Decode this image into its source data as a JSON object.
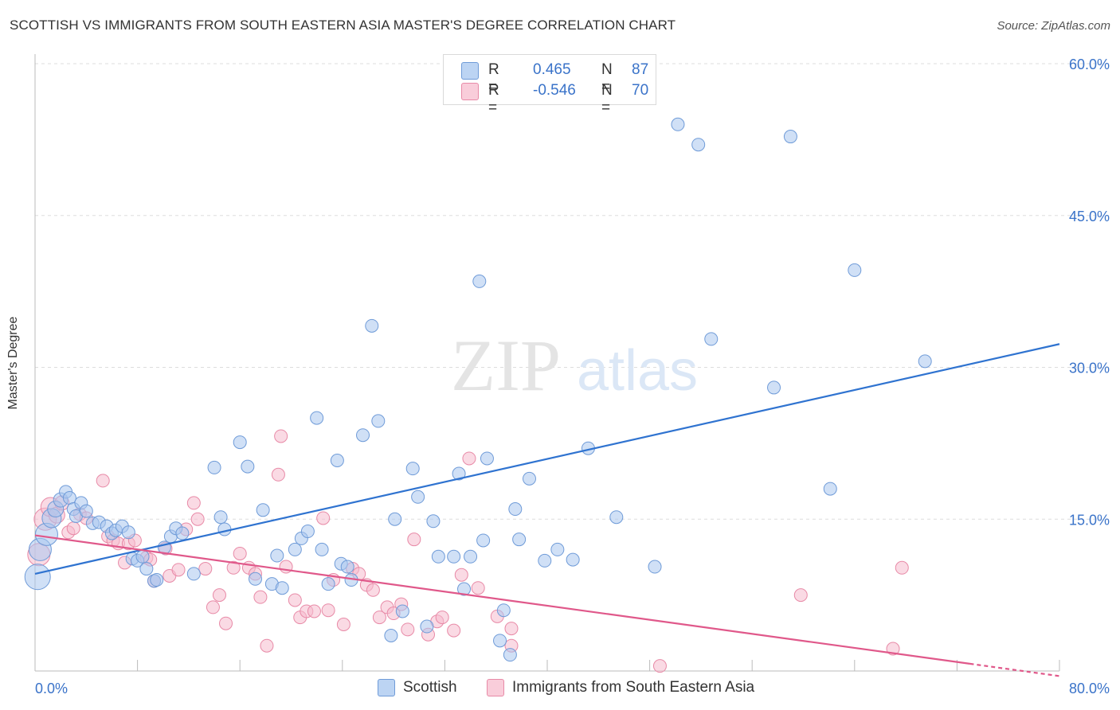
{
  "header": {
    "title": "SCOTTISH VS IMMIGRANTS FROM SOUTH EASTERN ASIA MASTER'S DEGREE CORRELATION CHART",
    "source": "Source: ZipAtlas.com"
  },
  "watermark": {
    "zip": "ZIP",
    "atlas": "atlas"
  },
  "legend": {
    "scottish": {
      "r_label": "R =",
      "r_value": "0.465",
      "n_label": "N =",
      "n_value": "87"
    },
    "sea": {
      "r_label": "R =",
      "r_value": "-0.546",
      "n_label": "N =",
      "n_value": "70"
    }
  },
  "bottom_legend": {
    "scottish": "Scottish",
    "sea": "Immigrants from South Eastern Asia"
  },
  "colors": {
    "blue_fill": "#a9c7ef",
    "blue_stroke": "#6f9bd8",
    "blue_line": "#2f73d0",
    "pink_fill": "#f6bccd",
    "pink_stroke": "#e88aa7",
    "pink_line": "#e0588a",
    "axis_text": "#3a73c9",
    "grid": "#dddddd"
  },
  "chart_data": {
    "type": "scatter",
    "title": "SCOTTISH VS IMMIGRANTS FROM SOUTH EASTERN ASIA MASTER'S DEGREE CORRELATION CHART",
    "ylabel": "Master's Degree",
    "xlim": [
      0,
      80
    ],
    "ylim": [
      0,
      60
    ],
    "x_tick_labels": [
      "0.0%",
      "80.0%"
    ],
    "y_ticks": [
      15,
      30,
      45,
      60
    ],
    "y_tick_labels": [
      "15.0%",
      "30.0%",
      "45.0%",
      "60.0%"
    ],
    "legend_position": "top-center",
    "series": [
      {
        "name": "Scottish",
        "color": "#a9c7ef",
        "trend": {
          "x": [
            0,
            80
          ],
          "y": [
            9.6,
            32.3
          ]
        },
        "points": [
          [
            0.2,
            9.3,
            16
          ],
          [
            0.4,
            12.0,
            14
          ],
          [
            0.9,
            13.5,
            14
          ],
          [
            1.3,
            15.1,
            12
          ],
          [
            1.6,
            16.0,
            10
          ],
          [
            2.0,
            16.9,
            9
          ],
          [
            2.4,
            17.7,
            8
          ],
          [
            2.7,
            17.1,
            8
          ],
          [
            3.0,
            16.0,
            8
          ],
          [
            3.2,
            15.3,
            8
          ],
          [
            3.6,
            16.6,
            8
          ],
          [
            4.0,
            15.8,
            8
          ],
          [
            4.5,
            14.6,
            8
          ],
          [
            5.0,
            14.7,
            8
          ],
          [
            5.6,
            14.3,
            8
          ],
          [
            6.0,
            13.6,
            8
          ],
          [
            6.3,
            13.9,
            8
          ],
          [
            6.8,
            14.3,
            8
          ],
          [
            7.3,
            13.7,
            8
          ],
          [
            7.6,
            11.1,
            8
          ],
          [
            8.0,
            10.9,
            8
          ],
          [
            8.4,
            11.3,
            8
          ],
          [
            8.7,
            10.1,
            8
          ],
          [
            9.3,
            8.9,
            8
          ],
          [
            9.5,
            9.0,
            8
          ],
          [
            10.1,
            12.2,
            8
          ],
          [
            10.6,
            13.3,
            8
          ],
          [
            11.0,
            14.1,
            8
          ],
          [
            11.5,
            13.6,
            8
          ],
          [
            12.4,
            9.6,
            8
          ],
          [
            14.0,
            20.1,
            8
          ],
          [
            14.5,
            15.2,
            8
          ],
          [
            14.8,
            14.0,
            8
          ],
          [
            16.0,
            22.6,
            8
          ],
          [
            16.6,
            20.2,
            8
          ],
          [
            17.2,
            9.1,
            8
          ],
          [
            17.8,
            15.9,
            8
          ],
          [
            18.5,
            8.6,
            8
          ],
          [
            18.9,
            11.4,
            8
          ],
          [
            19.3,
            8.2,
            8
          ],
          [
            20.3,
            12.0,
            8
          ],
          [
            20.8,
            13.1,
            8
          ],
          [
            21.3,
            13.8,
            8
          ],
          [
            22.0,
            25.0,
            8
          ],
          [
            22.4,
            12.0,
            8
          ],
          [
            22.9,
            8.6,
            8
          ],
          [
            23.6,
            20.8,
            8
          ],
          [
            23.9,
            10.6,
            8
          ],
          [
            24.4,
            10.3,
            8
          ],
          [
            24.7,
            9.0,
            8
          ],
          [
            25.6,
            23.3,
            8
          ],
          [
            26.3,
            34.1,
            8
          ],
          [
            26.8,
            24.7,
            8
          ],
          [
            27.8,
            3.5,
            8
          ],
          [
            28.1,
            15.0,
            8
          ],
          [
            28.7,
            5.9,
            8
          ],
          [
            29.5,
            20.0,
            8
          ],
          [
            29.9,
            17.2,
            8
          ],
          [
            30.6,
            4.4,
            8
          ],
          [
            31.1,
            14.8,
            8
          ],
          [
            31.5,
            11.3,
            8
          ],
          [
            32.7,
            11.3,
            8
          ],
          [
            33.1,
            19.5,
            8
          ],
          [
            33.5,
            8.1,
            8
          ],
          [
            34.0,
            11.3,
            8
          ],
          [
            34.7,
            38.5,
            8
          ],
          [
            35.3,
            21.0,
            8
          ],
          [
            36.3,
            3.0,
            8
          ],
          [
            36.6,
            6.0,
            8
          ],
          [
            37.5,
            16.0,
            8
          ],
          [
            37.8,
            13.0,
            8
          ],
          [
            38.6,
            19.0,
            8
          ],
          [
            37.1,
            1.6,
            8
          ],
          [
            39.8,
            10.9,
            8
          ],
          [
            40.8,
            12.0,
            8
          ],
          [
            35.0,
            12.9,
            8
          ],
          [
            42.0,
            11.0,
            8
          ],
          [
            43.2,
            22.0,
            8
          ],
          [
            45.4,
            15.2,
            8
          ],
          [
            48.4,
            10.3,
            8
          ],
          [
            50.2,
            54.0,
            8
          ],
          [
            51.8,
            52.0,
            8
          ],
          [
            52.8,
            32.8,
            8
          ],
          [
            57.7,
            28.0,
            8
          ],
          [
            59.0,
            52.8,
            8
          ],
          [
            62.1,
            18.0,
            8
          ],
          [
            64.0,
            39.6,
            8
          ],
          [
            69.5,
            30.6,
            8
          ]
        ]
      },
      {
        "name": "Immigrants from South Eastern Asia",
        "color": "#f6bccd",
        "trend": {
          "x": [
            0,
            80
          ],
          "y": [
            13.4,
            -0.5
          ]
        },
        "points": [
          [
            0.3,
            11.5,
            14
          ],
          [
            0.8,
            15.0,
            14
          ],
          [
            1.2,
            16.2,
            12
          ],
          [
            1.7,
            15.4,
            10
          ],
          [
            2.1,
            16.6,
            9
          ],
          [
            2.6,
            13.7,
            8
          ],
          [
            3.0,
            14.1,
            8
          ],
          [
            3.5,
            15.5,
            8
          ],
          [
            4.0,
            15.1,
            8
          ],
          [
            5.3,
            18.8,
            8
          ],
          [
            5.7,
            13.3,
            8
          ],
          [
            6.1,
            12.9,
            8
          ],
          [
            6.5,
            12.6,
            8
          ],
          [
            7.0,
            10.7,
            8
          ],
          [
            7.3,
            12.6,
            8
          ],
          [
            7.8,
            12.9,
            8
          ],
          [
            8.7,
            11.2,
            8
          ],
          [
            9.0,
            11.0,
            8
          ],
          [
            9.3,
            8.9,
            8
          ],
          [
            10.2,
            12.1,
            8
          ],
          [
            10.5,
            9.4,
            8
          ],
          [
            11.2,
            10.0,
            8
          ],
          [
            11.8,
            14.0,
            8
          ],
          [
            12.4,
            16.6,
            8
          ],
          [
            12.7,
            15.0,
            8
          ],
          [
            13.3,
            10.1,
            8
          ],
          [
            13.9,
            6.3,
            8
          ],
          [
            14.4,
            7.5,
            8
          ],
          [
            14.9,
            4.7,
            8
          ],
          [
            15.5,
            10.2,
            8
          ],
          [
            16.0,
            11.6,
            8
          ],
          [
            16.7,
            10.2,
            8
          ],
          [
            17.2,
            9.6,
            8
          ],
          [
            17.6,
            7.3,
            8
          ],
          [
            18.1,
            2.5,
            8
          ],
          [
            19.2,
            23.2,
            8
          ],
          [
            19.0,
            19.4,
            8
          ],
          [
            19.6,
            10.3,
            8
          ],
          [
            20.3,
            7.0,
            8
          ],
          [
            20.7,
            5.3,
            8
          ],
          [
            21.2,
            5.9,
            8
          ],
          [
            21.8,
            5.9,
            8
          ],
          [
            22.5,
            15.1,
            8
          ],
          [
            22.9,
            6.0,
            8
          ],
          [
            23.3,
            9.0,
            8
          ],
          [
            24.1,
            4.6,
            8
          ],
          [
            24.8,
            10.1,
            8
          ],
          [
            25.3,
            9.6,
            8
          ],
          [
            25.9,
            8.5,
            8
          ],
          [
            26.4,
            8.0,
            8
          ],
          [
            26.9,
            5.3,
            8
          ],
          [
            27.5,
            6.3,
            8
          ],
          [
            28.0,
            5.7,
            8
          ],
          [
            28.6,
            6.6,
            8
          ],
          [
            29.1,
            4.1,
            8
          ],
          [
            29.6,
            13.0,
            8
          ],
          [
            30.7,
            3.6,
            8
          ],
          [
            31.4,
            4.9,
            8
          ],
          [
            31.8,
            5.3,
            8
          ],
          [
            32.7,
            4.0,
            8
          ],
          [
            33.3,
            9.5,
            8
          ],
          [
            33.9,
            21.0,
            8
          ],
          [
            34.6,
            8.2,
            8
          ],
          [
            36.1,
            5.4,
            8
          ],
          [
            37.2,
            4.2,
            8
          ],
          [
            37.2,
            2.5,
            8
          ],
          [
            48.8,
            0.5,
            8
          ],
          [
            59.8,
            7.5,
            8
          ],
          [
            67.0,
            2.2,
            8
          ],
          [
            67.7,
            10.2,
            8
          ]
        ]
      }
    ]
  }
}
